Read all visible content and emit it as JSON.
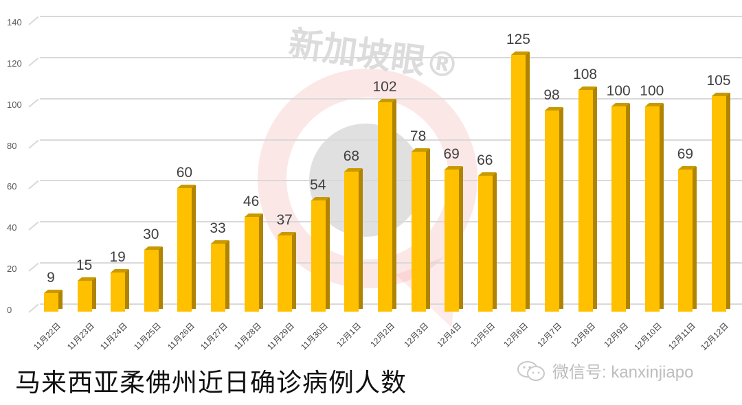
{
  "chart_data": {
    "type": "bar",
    "title": "马来西亚柔佛州近日确诊病例人数",
    "xlabel": "",
    "ylabel": "",
    "ylim": [
      0,
      140
    ],
    "yticks": [
      0,
      20,
      40,
      60,
      80,
      100,
      120,
      140
    ],
    "grid": true,
    "legend": null,
    "style": "3d-column",
    "bar_color": "#ffc000",
    "categories": [
      "11月22日",
      "11月23日",
      "11月24日",
      "11月25日",
      "11月26日",
      "11月27日",
      "11月28日",
      "11月29日",
      "11月30日",
      "12月1日",
      "12月2日",
      "12月3日",
      "12月4日",
      "12月5日",
      "12月6日",
      "12月7日",
      "12月8日",
      "12月9日",
      "12月10日",
      "12月11日",
      "12月12日"
    ],
    "values": [
      9,
      15,
      19,
      30,
      60,
      33,
      46,
      37,
      54,
      68,
      102,
      78,
      69,
      66,
      125,
      98,
      108,
      100,
      100,
      69,
      105
    ]
  },
  "watermark": {
    "brand": "新加坡眼®",
    "wechat_label": "微信号: kanxinjiapo"
  },
  "title": "马来西亚柔佛州近日确诊病例人数"
}
